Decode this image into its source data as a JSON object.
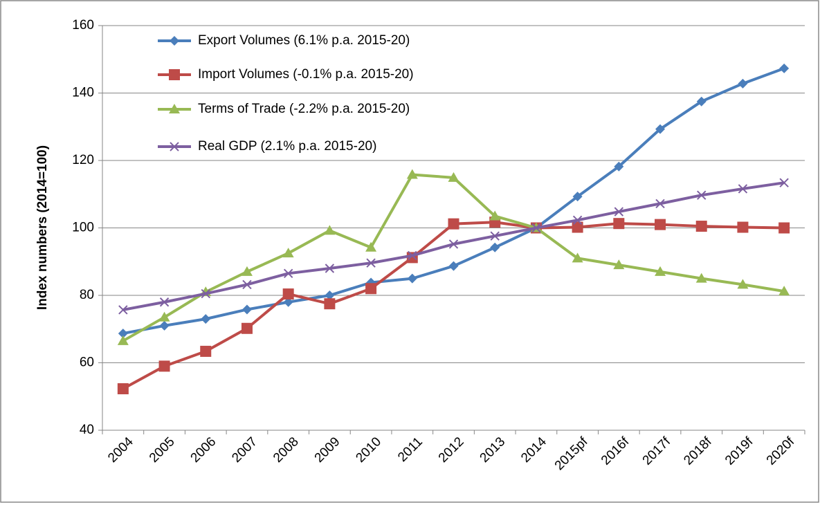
{
  "chart_data": {
    "type": "line",
    "y_label": "Index numbers (2014=100)",
    "categories": [
      "2004",
      "2005",
      "2006",
      "2007",
      "2008",
      "2009",
      "2010",
      "2011",
      "2012",
      "2013",
      "2014",
      "2015pf",
      "2016f",
      "2017f",
      "2018f",
      "2019f",
      "2020f"
    ],
    "series": [
      {
        "name": "Export Volumes (6.1% p.a. 2015-20)",
        "color": "#4a7ebb",
        "marker": "diamond",
        "values": [
          68.7,
          71,
          73,
          75.8,
          78,
          80,
          83.8,
          85,
          88.7,
          94.2,
          100,
          109.3,
          118.2,
          129.3,
          137.5,
          142.8,
          147.3
        ]
      },
      {
        "name": "Import Volumes (-0.1% p.a. 2015-20)",
        "color": "#be4b48",
        "marker": "square",
        "values": [
          52.3,
          59,
          63.4,
          70.2,
          80.4,
          77.5,
          82,
          91.2,
          101.2,
          101.7,
          100,
          100.2,
          101.3,
          101,
          100.5,
          100.2,
          100
        ]
      },
      {
        "name": "Terms of Trade (-2.2% p.a. 2015-20)",
        "color": "#98b954",
        "marker": "triangle",
        "values": [
          66.5,
          73.5,
          81,
          87,
          92.5,
          99.2,
          94.2,
          115.8,
          114.9,
          103.5,
          100,
          91,
          89,
          87,
          85,
          83.2,
          81.2
        ]
      },
      {
        "name": "Real GDP (2.1% p.a. 2015-20)",
        "color": "#7d5fa0",
        "marker": "x",
        "values": [
          75.7,
          78,
          80.5,
          83.2,
          86.5,
          88,
          89.6,
          91.8,
          95.2,
          97.6,
          100,
          102.3,
          104.8,
          107.2,
          109.7,
          111.6,
          113.4
        ]
      }
    ],
    "ylim": [
      40,
      160
    ],
    "yticks": [
      40,
      60,
      80,
      100,
      120,
      140,
      160
    ],
    "grid": true,
    "legend": "top-left"
  }
}
